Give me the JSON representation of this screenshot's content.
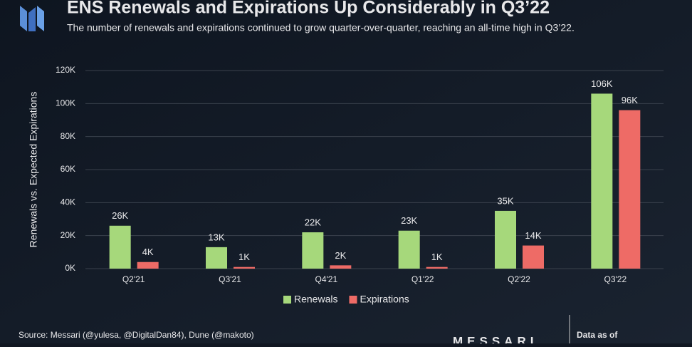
{
  "chart_data": {
    "type": "bar",
    "title": "ENS Renewals and Expirations Up Considerably in Q3’22",
    "subtitle": "The number of renewals and expirations continued to grow quarter-over-quarter, reaching an all-time high in Q3’22.",
    "y_label": "Renewals vs. Expected Expirations",
    "categories": [
      "Q2'21",
      "Q3'21",
      "Q4'21",
      "Q1'22",
      "Q2'22",
      "Q3'22"
    ],
    "series": [
      {
        "name": "Renewals",
        "color": "#a6d87b",
        "values": [
          26000,
          13000,
          22000,
          23000,
          35000,
          106000
        ],
        "value_labels": [
          "26K",
          "13K",
          "22K",
          "23K",
          "35K",
          "106K"
        ]
      },
      {
        "name": "Expirations",
        "color": "#ee6b66",
        "values": [
          4000,
          1000,
          2000,
          1000,
          14000,
          96000
        ],
        "value_labels": [
          "4K",
          "1K",
          "2K",
          "1K",
          "14K",
          "96K"
        ]
      }
    ],
    "ylim": [
      0,
      120000
    ],
    "yticks": [
      {
        "value": 0,
        "label": "0K"
      },
      {
        "value": 20000,
        "label": "20K"
      },
      {
        "value": 40000,
        "label": "40K"
      },
      {
        "value": 60000,
        "label": "60K"
      },
      {
        "value": 80000,
        "label": "80K"
      },
      {
        "value": 100000,
        "label": "100K"
      },
      {
        "value": 120000,
        "label": "120K"
      }
    ],
    "grid": true,
    "source": "Source: Messari (@yulesa, @DigitalDan84), Dune (@makoto)",
    "brand": "MESSARI",
    "note": "Data as of"
  }
}
